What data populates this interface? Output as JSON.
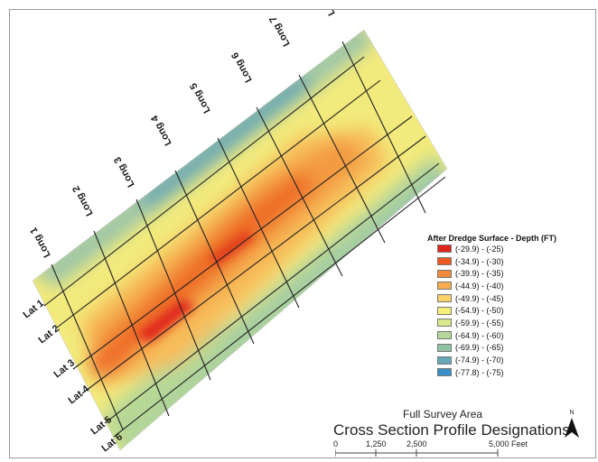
{
  "map": {
    "longs": [
      "Long 1",
      "Long 2",
      "Long 3",
      "Long 4",
      "Long 5",
      "Long 6",
      "Long 7",
      "Long 8"
    ],
    "lats": [
      "Lat 1",
      "Lat 2",
      "Lat 3",
      "Lat 4",
      "Lat 5",
      "Lat 6"
    ]
  },
  "legend": {
    "title": "After Dredge Surface - Depth (FT)",
    "items": [
      {
        "label": "(-29.9) - (-25)",
        "color": "#e0261c"
      },
      {
        "label": "(-34.9) - (-30)",
        "color": "#ec5a23"
      },
      {
        "label": "(-39.9) - (-35)",
        "color": "#f28a3a"
      },
      {
        "label": "(-44.9) - (-40)",
        "color": "#f6ad50"
      },
      {
        "label": "(-49.9) - (-45)",
        "color": "#fbd267"
      },
      {
        "label": "(-54.9) - (-50)",
        "color": "#f6f07a"
      },
      {
        "label": "(-59.9) - (-55)",
        "color": "#d9e98a"
      },
      {
        "label": "(-64.9) - (-60)",
        "color": "#b5d79a"
      },
      {
        "label": "(-69.9) - (-65)",
        "color": "#8fc1a5"
      },
      {
        "label": "(-74.9) - (-70)",
        "color": "#63a9b8"
      },
      {
        "label": "(-77.8) - (-75)",
        "color": "#3b8ec6"
      }
    ]
  },
  "footer": {
    "subtitle": "Full Survey Area",
    "title": "Cross Section Profile Designations"
  },
  "scale": {
    "labels": [
      "0",
      "1,250",
      "2,500",
      "5,000 Feet"
    ]
  },
  "north": {
    "label": "N"
  }
}
